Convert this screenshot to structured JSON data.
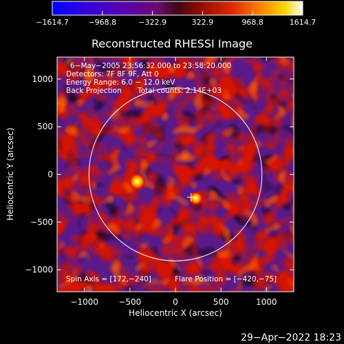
{
  "chart_data": {
    "type": "heatmap",
    "title": "Reconstructed RHESSI Image",
    "xlabel": "Heliocentric X (arcsec)",
    "ylabel": "Heliocentric Y (arcsec)",
    "xlim": [
      -1300,
      1300
    ],
    "ylim": [
      -1230,
      1230
    ],
    "x_ticks": [
      -1000,
      -500,
      0,
      500,
      1000
    ],
    "y_ticks": [
      -1000,
      -500,
      0,
      500,
      1000
    ],
    "x_tick_labels": [
      "−1000",
      "−500",
      "0",
      "500",
      "1000"
    ],
    "y_tick_labels": [
      "−1000",
      "−500",
      "0",
      "500",
      "1000"
    ],
    "colorbar": {
      "min": -1614.7,
      "max": 1614.7,
      "ticks": [
        -1614.7,
        -968.8,
        -322.9,
        322.9,
        968.8,
        1614.7
      ],
      "tick_labels": [
        "−1614.7",
        "−968.8",
        "−322.9",
        "322.9",
        "968.8",
        "1614.7"
      ],
      "colors": [
        "#0000ff",
        "#5a00b4",
        "#7a0a8a",
        "#a81000",
        "#e02800",
        "#ff8a00",
        "#ffd700",
        "#ffffff"
      ]
    },
    "annotations": [
      "6−May−2005 23:56:32.000 to 23:58:20.000",
      "Detectors: 7F 8F 9F, Att 0",
      "Energy Range: 6.0 − 12.0 keV",
      "Back Projection",
      "Total counts: 2.14E+03",
      "Spin Axis = [172,−240]",
      "Flare Position = [−420,−75]"
    ],
    "solar_disk": {
      "center": [
        0,
        0
      ],
      "radius_arcsec": 950,
      "color": "#ffffff"
    },
    "marker": {
      "shape": "plus",
      "x": 172,
      "y": -240
    },
    "sources": [
      {
        "x": -420,
        "y": -75,
        "radius": 55,
        "peak": 1614.7
      },
      {
        "x": 225,
        "y": -250,
        "radius": 45,
        "peak": 1350
      }
    ],
    "background_color": "#000000"
  },
  "footer": {
    "date": "29−Apr−2022 18:23"
  }
}
